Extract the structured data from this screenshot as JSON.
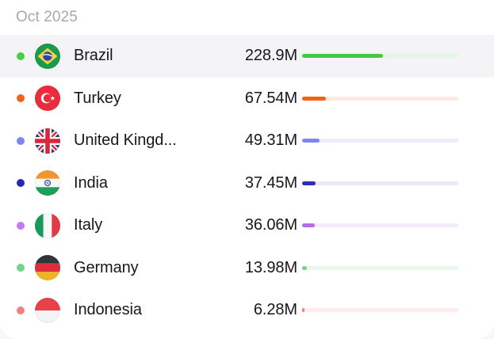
{
  "page": {
    "background": "#f7f8fa",
    "card_background": "#ffffff"
  },
  "header": {
    "title": "Oct 2025",
    "text_color": "#a7a7b1"
  },
  "list": {
    "rows": [
      {
        "label": "Brazil",
        "value": "228.9M",
        "value_millions": 228.9,
        "dot_color": "#4bcd4b",
        "bar_color": "#45c845",
        "track_color": "#e4f5e3",
        "flag_icon": "brazil-flag",
        "highlighted": true
      },
      {
        "label": "Turkey",
        "value": "67.54M",
        "value_millions": 67.54,
        "dot_color": "#f26315",
        "bar_color": "#f26315",
        "track_color": "#fcebe0",
        "flag_icon": "turkey-flag",
        "highlighted": false
      },
      {
        "label": "United Kingd...",
        "value": "49.31M",
        "value_millions": 49.31,
        "dot_color": "#7d87f3",
        "bar_color": "#7d87f3",
        "track_color": "#ececfb",
        "flag_icon": "uk-flag",
        "highlighted": false
      },
      {
        "label": "India",
        "value": "37.45M",
        "value_millions": 37.45,
        "dot_color": "#2527b8",
        "bar_color": "#2d2fb5",
        "track_color": "#e9e9f7",
        "flag_icon": "india-flag",
        "highlighted": false
      },
      {
        "label": "Italy",
        "value": "36.06M",
        "value_millions": 36.06,
        "dot_color": "#c07df2",
        "bar_color": "#b06ee9",
        "track_color": "#f3eafc",
        "flag_icon": "italy-flag",
        "highlighted": false
      },
      {
        "label": "Germany",
        "value": "13.98M",
        "value_millions": 13.98,
        "dot_color": "#72d489",
        "bar_color": "#72d489",
        "track_color": "#e9f7ed",
        "flag_icon": "germany-flag",
        "highlighted": false
      },
      {
        "label": "Indonesia",
        "value": "6.28M",
        "value_millions": 6.28,
        "dot_color": "#f4807e",
        "bar_color": "#f4807e",
        "track_color": "#fdeceb",
        "flag_icon": "indonesia-flag",
        "highlighted": false
      }
    ]
  },
  "chart_data": {
    "type": "bar",
    "orientation": "horizontal",
    "title": "Oct 2025",
    "categories": [
      "Brazil",
      "Turkey",
      "United Kingd...",
      "India",
      "Italy",
      "Germany",
      "Indonesia"
    ],
    "values": [
      228.9,
      67.54,
      49.31,
      37.45,
      36.06,
      13.98,
      6.28
    ],
    "value_labels": [
      "228.9M",
      "67.54M",
      "49.31M",
      "37.45M",
      "36.06M",
      "13.98M",
      "6.28M"
    ],
    "unit": "millions",
    "xlim": [
      0,
      440
    ],
    "colors": [
      "#45c845",
      "#f26315",
      "#7d87f3",
      "#2d2fb5",
      "#b06e e9",
      "#72d489",
      "#f4807e"
    ],
    "grid": false,
    "legend": false
  }
}
